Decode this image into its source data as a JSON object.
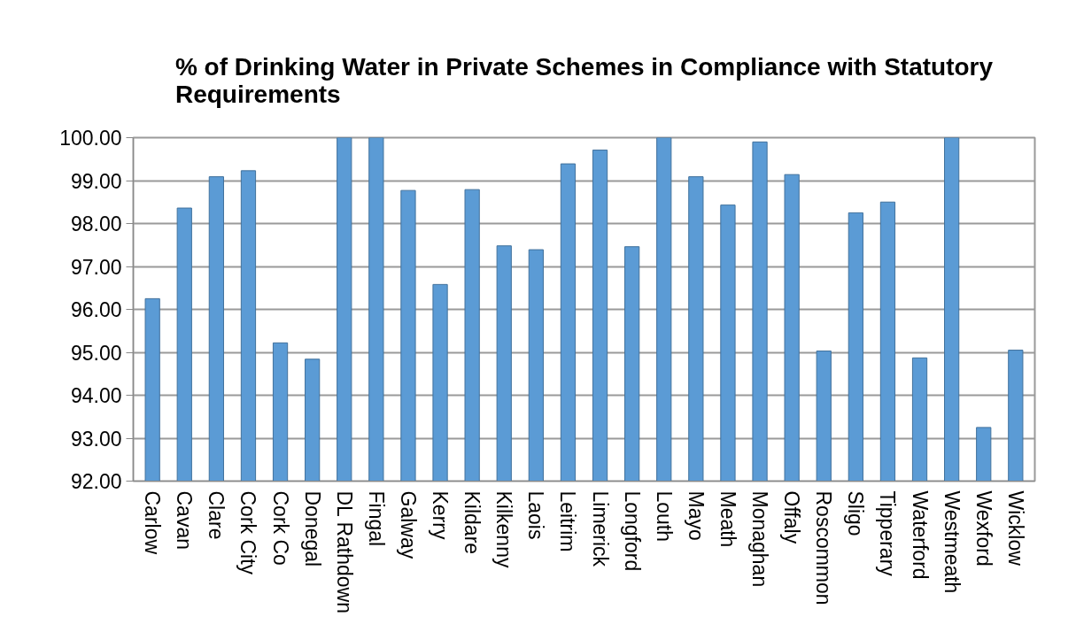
{
  "chart_data": {
    "type": "bar",
    "title": "% of Drinking Water in Private Schemes in Compliance with Statutory Requirements",
    "categories": [
      "Carlow",
      "Cavan",
      "Clare",
      "Cork City",
      "Cork Co",
      "Donegal",
      "DL Rathdown",
      "Fingal",
      "Galway",
      "Kerry",
      "Kildare",
      "Kilkenny",
      "Laois",
      "Leitrim",
      "Limerick",
      "Longford",
      "Louth",
      "Mayo",
      "Meath",
      "Monaghan",
      "Offaly",
      "Roscommon",
      "Sligo",
      "Tipperary",
      "Waterford",
      "Westmeath",
      "Wexford",
      "Wicklow"
    ],
    "values": [
      96.25,
      98.36,
      99.09,
      99.23,
      95.22,
      94.84,
      100.0,
      100.0,
      98.77,
      96.58,
      98.79,
      97.48,
      97.39,
      99.39,
      99.71,
      97.46,
      100.0,
      99.09,
      98.43,
      99.9,
      99.14,
      95.03,
      98.25,
      98.5,
      94.87,
      100.0,
      93.25,
      95.05
    ],
    "color": "#5b9bd5",
    "ylim": [
      92,
      100
    ],
    "yticks": [
      {
        "value": 92,
        "label": "92.00"
      },
      {
        "value": 93,
        "label": "93.00"
      },
      {
        "value": 94,
        "label": "94.00"
      },
      {
        "value": 95,
        "label": "95.00"
      },
      {
        "value": 96,
        "label": "96.00"
      },
      {
        "value": 97,
        "label": "97.00"
      },
      {
        "value": 98,
        "label": "98.00"
      },
      {
        "value": 99,
        "label": "99.00"
      },
      {
        "value": 100,
        "label": "100.00"
      }
    ],
    "grid": "y"
  }
}
